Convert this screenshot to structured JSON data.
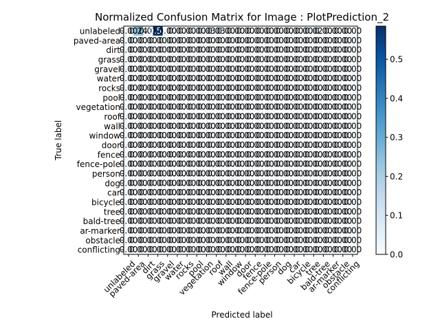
{
  "chart_data": {
    "type": "heatmap",
    "title": "Normalized Confusion Matrix for Image : PlotPrediction_2",
    "xlabel": "Predicted label",
    "ylabel": "True label",
    "labels": [
      "unlabeled",
      "paved-area",
      "dirt",
      "grass",
      "gravel",
      "water",
      "rocks",
      "pool",
      "vegetation",
      "roof",
      "wall",
      "window",
      "door",
      "fence",
      "fence-pole",
      "person",
      "dog",
      "car",
      "bicycle",
      "tree",
      "bald-tree",
      "ar-marker",
      "obstacle",
      "conflicting"
    ],
    "matrix": [
      [
        0.0,
        0.24,
        0.01,
        0.58,
        0.0,
        0.0,
        0.0,
        0.0,
        0.03,
        0.03,
        0.0,
        0.0,
        0.0,
        0.0,
        0.0,
        0.0,
        0.0,
        0.0,
        0.0,
        0.02,
        0.0,
        0.0,
        0.0,
        0.0
      ],
      [
        0,
        0,
        0,
        0,
        0,
        0,
        0,
        0,
        0,
        0,
        0,
        0,
        0,
        0,
        0,
        0,
        0,
        0,
        0,
        0,
        0,
        0,
        0,
        0
      ],
      [
        0,
        0,
        0,
        0,
        0,
        0,
        0,
        0,
        0,
        0,
        0,
        0,
        0,
        0,
        0,
        0,
        0,
        0,
        0,
        0,
        0,
        0,
        0,
        0
      ],
      [
        0,
        0,
        0,
        0,
        0,
        0,
        0,
        0,
        0,
        0,
        0,
        0,
        0,
        0,
        0,
        0,
        0,
        0,
        0,
        0,
        0,
        0,
        0,
        0
      ],
      [
        0,
        0,
        0,
        0,
        0,
        0,
        0,
        0,
        0,
        0,
        0,
        0,
        0,
        0,
        0,
        0,
        0,
        0,
        0,
        0,
        0,
        0,
        0,
        0
      ],
      [
        0,
        0,
        0,
        0,
        0,
        0,
        0,
        0,
        0,
        0,
        0,
        0,
        0,
        0,
        0,
        0,
        0,
        0,
        0,
        0,
        0,
        0,
        0,
        0
      ],
      [
        0,
        0,
        0,
        0,
        0,
        0,
        0,
        0,
        0,
        0,
        0,
        0,
        0,
        0,
        0,
        0,
        0,
        0,
        0,
        0,
        0,
        0,
        0,
        0
      ],
      [
        0,
        0,
        0,
        0,
        0,
        0,
        0,
        0,
        0,
        0,
        0,
        0,
        0,
        0,
        0,
        0,
        0,
        0,
        0,
        0,
        0,
        0,
        0,
        0
      ],
      [
        0,
        0,
        0,
        0,
        0,
        0,
        0,
        0,
        0,
        0,
        0,
        0,
        0,
        0,
        0,
        0,
        0,
        0,
        0,
        0,
        0,
        0,
        0,
        0
      ],
      [
        0,
        0,
        0,
        0,
        0,
        0,
        0,
        0,
        0,
        0,
        0,
        0,
        0,
        0,
        0,
        0,
        0,
        0,
        0,
        0,
        0,
        0,
        0,
        0
      ],
      [
        0,
        0,
        0,
        0,
        0,
        0,
        0,
        0,
        0,
        0,
        0,
        0,
        0,
        0,
        0,
        0,
        0,
        0,
        0,
        0,
        0,
        0,
        0,
        0
      ],
      [
        0,
        0,
        0,
        0,
        0,
        0,
        0,
        0,
        0,
        0,
        0,
        0,
        0,
        0,
        0,
        0,
        0,
        0,
        0,
        0,
        0,
        0,
        0,
        0
      ],
      [
        0,
        0,
        0,
        0,
        0,
        0,
        0,
        0,
        0,
        0,
        0,
        0,
        0,
        0,
        0,
        0,
        0,
        0,
        0,
        0,
        0,
        0,
        0,
        0
      ],
      [
        0,
        0,
        0,
        0,
        0,
        0,
        0,
        0,
        0,
        0,
        0,
        0,
        0,
        0,
        0,
        0,
        0,
        0,
        0,
        0,
        0,
        0,
        0,
        0
      ],
      [
        0,
        0,
        0,
        0,
        0,
        0,
        0,
        0,
        0,
        0,
        0,
        0,
        0,
        0,
        0,
        0,
        0,
        0,
        0,
        0,
        0,
        0,
        0,
        0
      ],
      [
        0,
        0,
        0,
        0,
        0,
        0,
        0,
        0,
        0,
        0,
        0,
        0,
        0,
        0,
        0,
        0,
        0,
        0,
        0,
        0,
        0,
        0,
        0,
        0
      ],
      [
        0,
        0,
        0,
        0,
        0,
        0,
        0,
        0,
        0,
        0,
        0,
        0,
        0,
        0,
        0,
        0,
        0,
        0,
        0,
        0,
        0,
        0,
        0,
        0
      ],
      [
        0,
        0,
        0,
        0,
        0,
        0,
        0,
        0,
        0,
        0,
        0,
        0,
        0,
        0,
        0,
        0,
        0,
        0,
        0,
        0,
        0,
        0,
        0,
        0
      ],
      [
        0,
        0,
        0,
        0,
        0,
        0,
        0,
        0,
        0,
        0,
        0,
        0,
        0,
        0,
        0,
        0,
        0,
        0,
        0,
        0,
        0,
        0,
        0,
        0
      ],
      [
        0,
        0,
        0,
        0,
        0,
        0,
        0,
        0,
        0,
        0,
        0,
        0,
        0,
        0,
        0,
        0,
        0,
        0,
        0,
        0,
        0,
        0,
        0,
        0
      ],
      [
        0,
        0,
        0,
        0,
        0,
        0,
        0,
        0,
        0,
        0,
        0,
        0,
        0,
        0,
        0,
        0,
        0,
        0,
        0,
        0,
        0,
        0,
        0,
        0
      ],
      [
        0,
        0,
        0,
        0,
        0,
        0,
        0,
        0,
        0,
        0,
        0,
        0,
        0,
        0,
        0,
        0,
        0,
        0,
        0,
        0,
        0,
        0,
        0,
        0
      ],
      [
        0,
        0,
        0,
        0,
        0,
        0,
        0,
        0,
        0,
        0,
        0,
        0,
        0,
        0,
        0,
        0,
        0,
        0,
        0,
        0,
        0,
        0,
        0,
        0
      ],
      [
        0,
        0,
        0,
        0,
        0,
        0,
        0,
        0,
        0,
        0,
        0,
        0,
        0,
        0,
        0,
        0,
        0,
        0,
        0,
        0,
        0,
        0,
        0,
        0
      ]
    ],
    "colorbar": {
      "range": [
        0,
        0.585
      ],
      "ticks": [
        "0.0",
        "0.1",
        "0.2",
        "0.3",
        "0.4",
        "0.5"
      ],
      "colors": [
        "#f7fbff",
        "#deebf7",
        "#c6dbef",
        "#9ecae1",
        "#6baed6",
        "#4292c6",
        "#2171b5",
        "#08519c",
        "#08306b"
      ]
    }
  }
}
